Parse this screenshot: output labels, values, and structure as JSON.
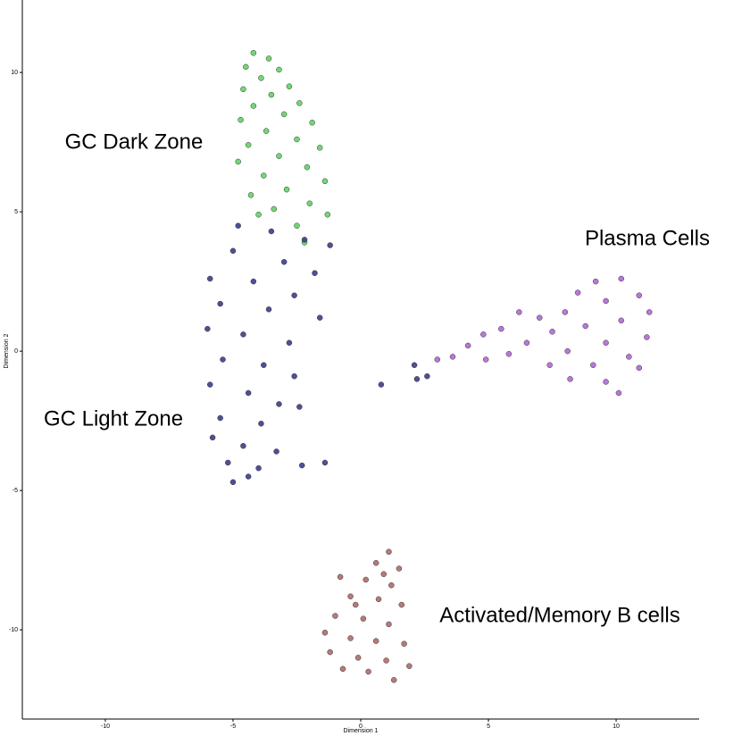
{
  "chart_data": {
    "type": "scatter",
    "x_label": "Dimension 1",
    "y_label": "Dimension 2",
    "xlim": [
      -13.25,
      13.25
    ],
    "ylim": [
      -13.2,
      12.6
    ],
    "xticks": [
      -10,
      -5,
      0,
      5,
      10
    ],
    "yticks": [
      -10,
      -5,
      0,
      5,
      10
    ],
    "grid": false,
    "series": [
      {
        "name": "GC Dark Zone",
        "color": "#62d462",
        "x": [
          -4.2,
          -3.6,
          -4.5,
          -3.2,
          -3.9,
          -4.6,
          -2.8,
          -3.5,
          -4.2,
          -2.4,
          -3.0,
          -4.7,
          -1.9,
          -3.7,
          -2.5,
          -4.4,
          -1.6,
          -3.2,
          -4.8,
          -2.1,
          -3.8,
          -1.4,
          -2.9,
          -4.3,
          -2.0,
          -3.4,
          -1.3,
          -4.0,
          -2.5,
          -2.2
        ],
        "y": [
          10.7,
          10.5,
          10.2,
          10.1,
          9.8,
          9.4,
          9.5,
          9.2,
          8.8,
          8.9,
          8.5,
          8.3,
          8.2,
          7.9,
          7.6,
          7.4,
          7.3,
          7.0,
          6.8,
          6.6,
          6.3,
          6.1,
          5.8,
          5.6,
          5.3,
          5.1,
          4.9,
          4.9,
          4.5,
          3.9
        ]
      },
      {
        "name": "GC Light Zone",
        "color": "#3a3d8c",
        "x": [
          -4.8,
          -3.5,
          -2.2,
          -1.2,
          -5.0,
          -3.0,
          -1.8,
          -5.9,
          -4.2,
          -2.6,
          -5.5,
          -3.6,
          -1.6,
          -6.0,
          -4.6,
          -2.8,
          -5.4,
          -3.8,
          -2.6,
          -5.9,
          -4.4,
          -3.2,
          -5.5,
          -3.9,
          -2.4,
          -5.8,
          -4.6,
          -3.3,
          -5.2,
          -4.0,
          -2.3,
          -1.4,
          -5.0,
          -4.4,
          2.2,
          2.6,
          2.1,
          0.8
        ],
        "y": [
          4.5,
          4.3,
          4.0,
          3.8,
          3.6,
          3.2,
          2.8,
          2.6,
          2.5,
          2.0,
          1.7,
          1.5,
          1.2,
          0.8,
          0.6,
          0.3,
          -0.3,
          -0.5,
          -0.9,
          -1.2,
          -1.5,
          -1.9,
          -2.4,
          -2.6,
          -2.0,
          -3.1,
          -3.4,
          -3.6,
          -4.0,
          -4.2,
          -4.1,
          -4.0,
          -4.7,
          -4.5,
          -1.0,
          -0.9,
          -0.5,
          -1.2
        ]
      },
      {
        "name": "Plasma Cells",
        "color": "#b068d6",
        "x": [
          9.2,
          10.2,
          8.5,
          10.9,
          9.6,
          8.0,
          11.3,
          10.2,
          8.8,
          7.5,
          11.2,
          9.6,
          8.1,
          10.5,
          7.4,
          9.1,
          10.9,
          8.2,
          9.6,
          10.1,
          7.0,
          6.2,
          5.5,
          4.8,
          4.2,
          3.6,
          3.0,
          5.8,
          4.9,
          6.5
        ],
        "y": [
          2.5,
          2.6,
          2.1,
          2.0,
          1.8,
          1.4,
          1.4,
          1.1,
          0.9,
          0.7,
          0.5,
          0.3,
          0.0,
          -0.2,
          -0.5,
          -0.5,
          -0.6,
          -1.0,
          -1.1,
          -1.5,
          1.2,
          1.4,
          0.8,
          0.6,
          0.2,
          -0.2,
          -0.3,
          -0.1,
          -0.3,
          0.3
        ]
      },
      {
        "name": "Activated/Memory B cells",
        "color": "#b06a6a",
        "x": [
          1.1,
          0.6,
          1.5,
          0.2,
          1.2,
          -0.4,
          0.7,
          1.6,
          -1.0,
          0.1,
          1.1,
          -1.4,
          -0.4,
          0.6,
          1.7,
          -1.2,
          -0.1,
          1.0,
          1.9,
          0.3,
          1.3,
          -0.7,
          -0.8,
          0.9,
          -0.2
        ],
        "y": [
          -7.2,
          -7.6,
          -7.8,
          -8.2,
          -8.4,
          -8.8,
          -8.9,
          -9.1,
          -9.5,
          -9.6,
          -9.8,
          -10.1,
          -10.3,
          -10.4,
          -10.5,
          -10.8,
          -11.0,
          -11.1,
          -11.3,
          -11.5,
          -11.8,
          -11.4,
          -8.1,
          -8.0,
          -9.1
        ]
      }
    ]
  }
}
